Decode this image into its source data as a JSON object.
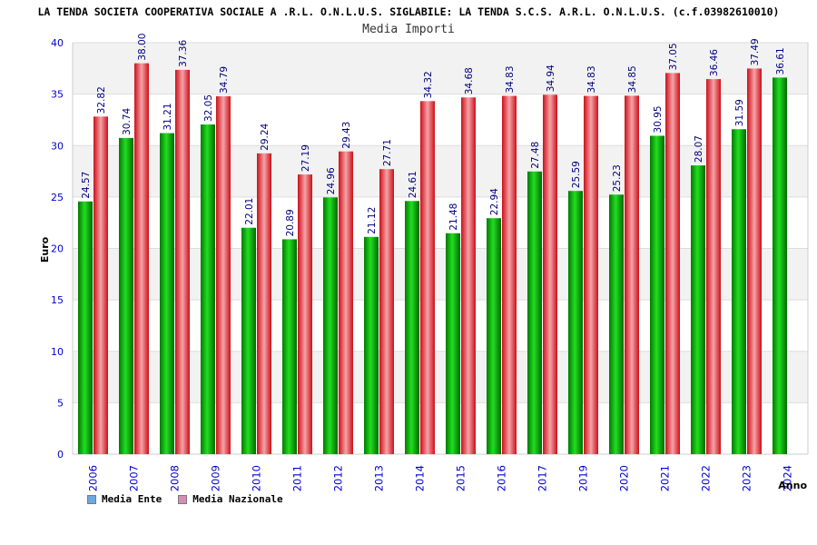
{
  "heading": "LA TENDA SOCIETA COOPERATIVA SOCIALE A .R.L. O.N.L.U.S. SIGLABILE: LA TENDA S.C.S. A.R.L. O.N.L.U.S. (c.f.03982610010)",
  "legend": [
    {
      "label": "Media Ente",
      "color": "#6fa8dc"
    },
    {
      "label": "Media Nazionale",
      "color": "#d98bb5"
    }
  ],
  "chart_data": {
    "type": "bar",
    "title": "Media Importi",
    "xlabel": "Anno",
    "ylabel": "Euro",
    "ylim": [
      0,
      40
    ],
    "yticks": [
      0,
      5,
      10,
      15,
      20,
      25,
      30,
      35,
      40
    ],
    "grid": true,
    "legend_position": "bottom-left",
    "categories": [
      "2006",
      "2007",
      "2008",
      "2009",
      "2010",
      "2011",
      "2012",
      "2013",
      "2014",
      "2015",
      "2016",
      "2017",
      "2019",
      "2020",
      "2021",
      "2022",
      "2023",
      "2024"
    ],
    "series": [
      {
        "name": "Media Ente",
        "color": "#0fb80f",
        "values": [
          24.57,
          30.74,
          31.21,
          32.05,
          22.01,
          20.89,
          24.96,
          21.12,
          24.61,
          21.48,
          22.94,
          27.48,
          25.59,
          25.23,
          30.95,
          28.07,
          31.59,
          36.61
        ]
      },
      {
        "name": "Media Nazionale",
        "color": "#e8262e",
        "values": [
          32.82,
          38.0,
          37.36,
          34.79,
          29.24,
          27.19,
          29.43,
          27.71,
          34.32,
          34.68,
          34.83,
          34.94,
          34.83,
          34.85,
          37.05,
          36.46,
          37.49,
          null
        ]
      }
    ],
    "data_label_text": {
      "Media Nazionale": [
        "32.82",
        "38.00",
        "37.36",
        "34.79",
        "29.24",
        "27.19",
        "29.43",
        "27.71",
        "34.32",
        "34.68",
        "34.83",
        "34.94",
        "34.83",
        "34.85",
        "37.05",
        "36.46",
        "37.49",
        null
      ]
    }
  }
}
